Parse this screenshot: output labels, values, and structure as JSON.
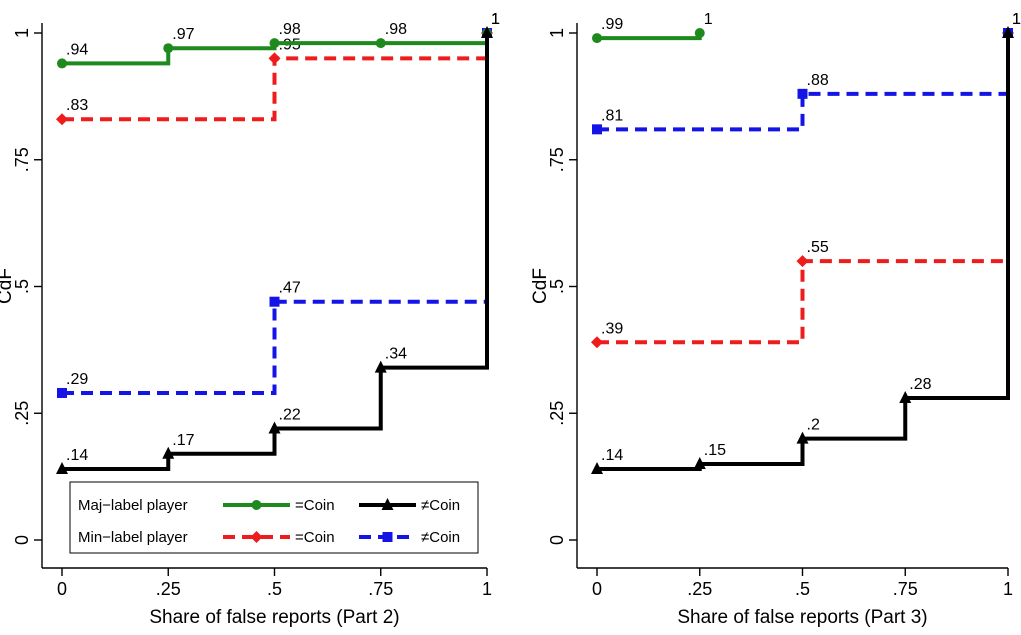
{
  "chart_data": [
    {
      "type": "line",
      "step": true,
      "xlabel": "Share of false reports (Part 2)",
      "ylabel": "CdF",
      "xlim": [
        0,
        1
      ],
      "ylim": [
        0,
        1
      ],
      "x_ticks": [
        "0",
        ".25",
        ".5",
        ".75",
        "1"
      ],
      "y_ticks": [
        "0",
        ".25",
        ".5",
        ".75",
        "1"
      ],
      "grid": false,
      "legend": {
        "placement": "bottom-left",
        "rows": [
          {
            "group": "Maj−label player",
            "entries": [
              {
                "series": 0,
                "label": "=Coin"
              },
              {
                "series": 1,
                "label": "≠Coin"
              }
            ]
          },
          {
            "group": "Min−label player",
            "entries": [
              {
                "series": 2,
                "label": "=Coin"
              },
              {
                "series": 3,
                "label": "≠Coin"
              }
            ]
          }
        ]
      },
      "series": [
        {
          "color": "#1e8a1e",
          "dash": "solid",
          "marker": "circle",
          "x": [
            0,
            0.25,
            0.5,
            0.75,
            1
          ],
          "y": [
            0.94,
            0.97,
            0.98,
            0.98,
            1
          ],
          "labels": [
            ".94",
            ".97",
            ".98",
            ".98",
            "1"
          ]
        },
        {
          "color": "#000000",
          "dash": "solid",
          "marker": "triangle",
          "x": [
            0,
            0.25,
            0.5,
            0.75,
            1
          ],
          "y": [
            0.14,
            0.17,
            0.22,
            0.34,
            1
          ],
          "labels": [
            ".14",
            ".17",
            ".22",
            ".34",
            "1"
          ]
        },
        {
          "color": "#ee1c1c",
          "dash": "dashed",
          "marker": "diamond",
          "x": [
            0,
            0.5,
            1
          ],
          "y": [
            0.83,
            0.95,
            1
          ],
          "labels": [
            ".83",
            ".95",
            "1"
          ]
        },
        {
          "color": "#1414e6",
          "dash": "dashed",
          "marker": "square",
          "x": [
            0,
            0.5,
            1
          ],
          "y": [
            0.29,
            0.47,
            1
          ],
          "labels": [
            ".29",
            ".47",
            "1"
          ]
        }
      ]
    },
    {
      "type": "line",
      "step": true,
      "xlabel": "Share of false reports (Part 3)",
      "ylabel": "CdF",
      "xlim": [
        0,
        1
      ],
      "ylim": [
        0,
        1
      ],
      "x_ticks": [
        "0",
        ".25",
        ".5",
        ".75",
        "1"
      ],
      "y_ticks": [
        "0",
        ".25",
        ".5",
        ".75",
        "1"
      ],
      "grid": false,
      "series": [
        {
          "color": "#1e8a1e",
          "dash": "solid",
          "marker": "circle",
          "x": [
            0,
            0.25
          ],
          "y": [
            0.99,
            1
          ],
          "labels": [
            ".99",
            "1"
          ]
        },
        {
          "color": "#000000",
          "dash": "solid",
          "marker": "triangle",
          "x": [
            0,
            0.25,
            0.5,
            0.75,
            1
          ],
          "y": [
            0.14,
            0.15,
            0.2,
            0.28,
            1
          ],
          "labels": [
            ".14",
            ".15",
            ".2",
            ".28",
            "1"
          ]
        },
        {
          "color": "#ee1c1c",
          "dash": "dashed",
          "marker": "diamond",
          "x": [
            0,
            0.5,
            1
          ],
          "y": [
            0.39,
            0.55,
            1
          ],
          "labels": [
            ".39",
            ".55",
            "1"
          ]
        },
        {
          "color": "#1414e6",
          "dash": "dashed",
          "marker": "square",
          "x": [
            0,
            0.5,
            1
          ],
          "y": [
            0.81,
            0.88,
            1
          ],
          "labels": [
            ".81",
            ".88",
            "1"
          ]
        }
      ]
    }
  ]
}
